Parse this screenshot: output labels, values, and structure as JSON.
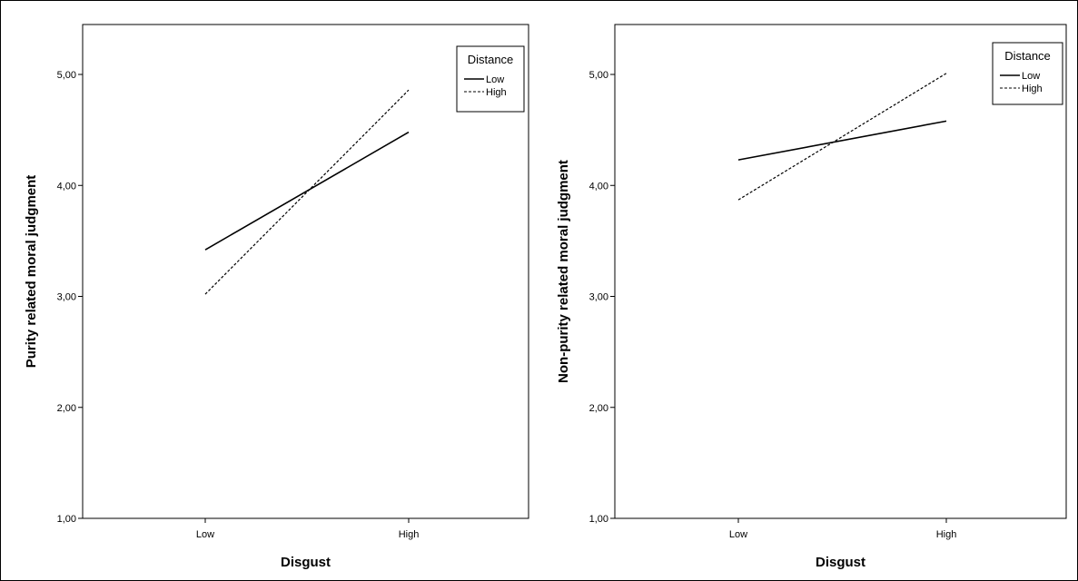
{
  "chart_data": [
    {
      "type": "line",
      "title": "",
      "xlabel": "Disgust",
      "ylabel": "Purity related moral judgment",
      "categories": [
        "Low",
        "High"
      ],
      "ylim": [
        1.0,
        5.45
      ],
      "yticks": [
        "1,00",
        "2,00",
        "3,00",
        "4,00",
        "5,00"
      ],
      "legend_title": "Distance",
      "legend_position": "top-right",
      "series": [
        {
          "name": "Low",
          "style": "solid",
          "values": [
            3.42,
            4.48
          ]
        },
        {
          "name": "High",
          "style": "dashed",
          "values": [
            3.02,
            4.86
          ]
        }
      ]
    },
    {
      "type": "line",
      "title": "",
      "xlabel": "Disgust",
      "ylabel": "Non-purity related moral judgment",
      "categories": [
        "Low",
        "High"
      ],
      "ylim": [
        1.0,
        5.45
      ],
      "yticks": [
        "1,00",
        "2,00",
        "3,00",
        "4,00",
        "5,00"
      ],
      "legend_title": "Distance",
      "legend_position": "top-right",
      "series": [
        {
          "name": "Low",
          "style": "solid",
          "values": [
            4.23,
            4.58
          ]
        },
        {
          "name": "High",
          "style": "dashed",
          "values": [
            3.87,
            5.01
          ]
        }
      ]
    }
  ]
}
